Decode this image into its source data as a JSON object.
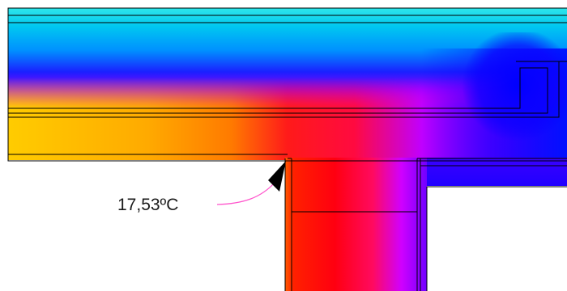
{
  "annotation": {
    "temperature_label": "17,53ºC"
  },
  "colors": {
    "background": "#ffffff",
    "leader_line": "#ff55cc",
    "arrow": "#000000",
    "outline": "#000000",
    "scale": [
      "#00e6e6",
      "#00b4ff",
      "#0050ff",
      "#2a00ff",
      "#8a00ff",
      "#d400ff",
      "#ff1a8c",
      "#ff0000",
      "#ff5000",
      "#ff9000",
      "#ffd000"
    ]
  }
}
